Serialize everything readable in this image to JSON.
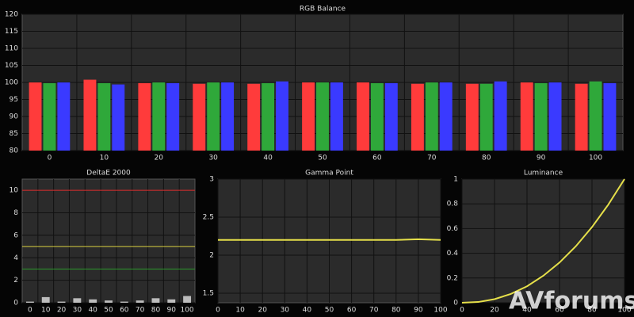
{
  "chart_data": [
    {
      "type": "bar",
      "title": "RGB Balance",
      "categories": [
        "0",
        "10",
        "20",
        "30",
        "40",
        "50",
        "60",
        "70",
        "80",
        "90",
        "100"
      ],
      "series": [
        {
          "color": "#ff3b3b",
          "values": [
            100,
            100.8,
            99.8,
            99.6,
            99.6,
            100,
            100,
            99.6,
            99.6,
            100,
            99.6
          ]
        },
        {
          "color": "#2fa83a",
          "values": [
            99.8,
            99.8,
            100,
            100,
            99.8,
            100,
            99.8,
            100,
            99.6,
            99.8,
            100.3
          ]
        },
        {
          "color": "#3a3aff",
          "values": [
            100,
            99.4,
            99.8,
            100,
            100.3,
            100,
            99.8,
            100,
            100.3,
            100,
            99.8
          ]
        }
      ],
      "ylim": [
        80,
        120
      ],
      "yticks": [
        80,
        85,
        90,
        95,
        100,
        105,
        110,
        115,
        120
      ],
      "grid": true
    },
    {
      "type": "bar",
      "title": "DeltaE 2000",
      "categories": [
        "0",
        "10",
        "20",
        "30",
        "40",
        "50",
        "60",
        "70",
        "80",
        "90",
        "100"
      ],
      "values": [
        0.1,
        0.5,
        0.1,
        0.4,
        0.3,
        0.2,
        0.1,
        0.2,
        0.4,
        0.3,
        0.6
      ],
      "color": "#bdbdbd",
      "reference_lines": [
        {
          "value": 10,
          "color": "#e03030"
        },
        {
          "value": 5,
          "color": "#d8d040"
        },
        {
          "value": 3,
          "color": "#2a9a2a"
        }
      ],
      "ylim": [
        0,
        11
      ],
      "yticks": [
        0,
        2,
        4,
        6,
        8,
        10
      ],
      "grid": true
    },
    {
      "type": "line",
      "title": "Gamma Point",
      "x": [
        0,
        10,
        20,
        30,
        40,
        50,
        60,
        70,
        80,
        90,
        100
      ],
      "values": [
        2.2,
        2.2,
        2.2,
        2.2,
        2.2,
        2.2,
        2.2,
        2.2,
        2.2,
        2.21,
        2.2
      ],
      "color": "#e6e04a",
      "xlim": [
        0,
        100
      ],
      "xticks": [
        0,
        10,
        20,
        30,
        40,
        50,
        60,
        70,
        80,
        90,
        100
      ],
      "ylim": [
        1.375,
        3
      ],
      "yticks": [
        1.5,
        2,
        2.5,
        3
      ],
      "grid": true
    },
    {
      "type": "line",
      "title": "Luminance",
      "x": [
        0,
        10,
        20,
        30,
        40,
        50,
        60,
        70,
        80,
        90,
        100
      ],
      "values": [
        0,
        0.006,
        0.029,
        0.071,
        0.133,
        0.218,
        0.325,
        0.456,
        0.612,
        0.793,
        1
      ],
      "color": "#e6e04a",
      "xlim": [
        0,
        100
      ],
      "xticks": [
        0,
        20,
        40,
        60,
        80,
        100
      ],
      "ylim": [
        0,
        1
      ],
      "yticks": [
        0,
        0.2,
        0.4,
        0.6,
        0.8,
        1
      ],
      "grid": true
    }
  ],
  "watermark": "AVforums"
}
